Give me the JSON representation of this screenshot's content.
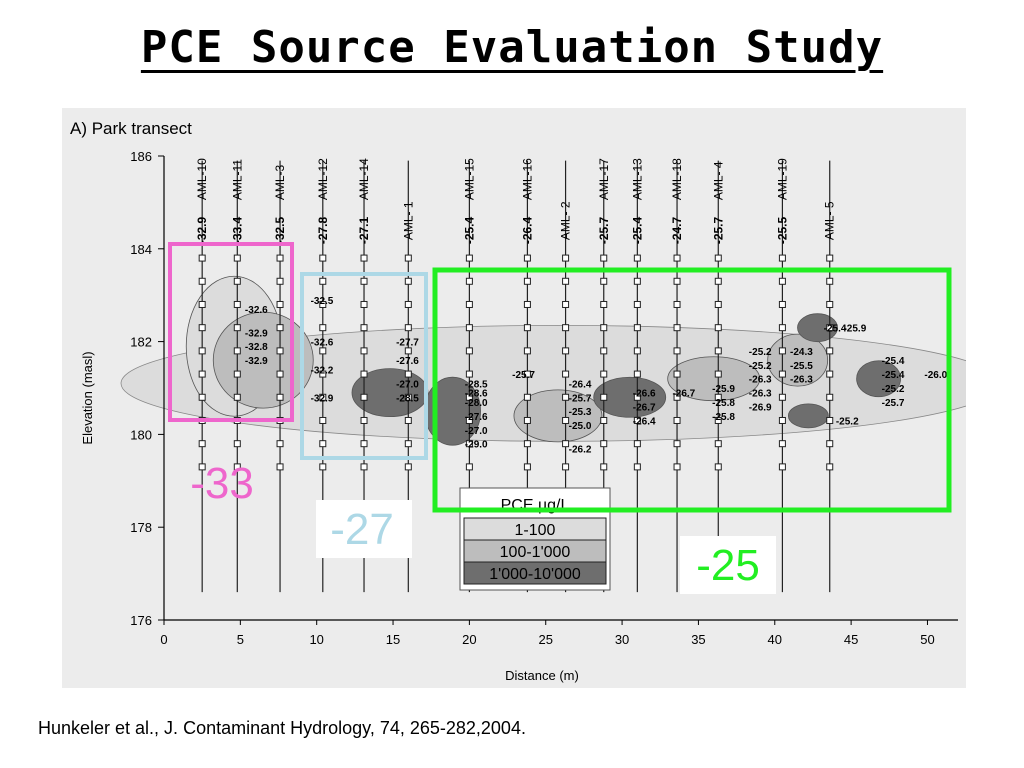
{
  "slide": {
    "title": "PCE Source Evaluation Study",
    "citation": "Hunkeler et al., J. Contaminant Hydrology, 74, 265-282,2004."
  },
  "colors": {
    "pink": "#ee66cc",
    "lightblue": "#add8e6",
    "green": "#22ee22",
    "shade_low": "#dcdcdc",
    "shade_mid": "#bdbdbd",
    "shade_high": "#6e6e6e"
  },
  "chart_data": {
    "type": "scatter",
    "title": "A) Park transect",
    "xlabel": "Distance (m)",
    "ylabel": "Elevation (masl)",
    "xlim": [
      0,
      52
    ],
    "ylim": [
      176,
      186
    ],
    "x_ticks": [
      "0",
      "5",
      "10",
      "15",
      "20",
      "25",
      "30",
      "35",
      "40",
      "45",
      "50"
    ],
    "y_ticks": [
      "176",
      "178",
      "180",
      "182",
      "184",
      "186"
    ],
    "wells": [
      {
        "name": "AML-10",
        "x": 2.5,
        "value": "-32.9"
      },
      {
        "name": "AML-11",
        "x": 4.8,
        "value": "-33.4"
      },
      {
        "name": "AML-3",
        "x": 7.6,
        "value": "-32.5"
      },
      {
        "name": "AML-12",
        "x": 10.4,
        "value": "-27.8"
      },
      {
        "name": "AML-14",
        "x": 13.1,
        "value": "-27.1"
      },
      {
        "name": "AML- 1",
        "x": 16.0,
        "value": ""
      },
      {
        "name": "AML-15",
        "x": 20.0,
        "value": "-25.4"
      },
      {
        "name": "AML-16",
        "x": 23.8,
        "value": "-26.4"
      },
      {
        "name": "AML- 2",
        "x": 26.3,
        "value": ""
      },
      {
        "name": "AML-17",
        "x": 28.8,
        "value": "-25.7"
      },
      {
        "name": "AML-13",
        "x": 31.0,
        "value": "-25.4"
      },
      {
        "name": "AML-18",
        "x": 33.6,
        "value": "-24.7"
      },
      {
        "name": "AML- 4",
        "x": 36.3,
        "value": "-25.7"
      },
      {
        "name": "AML-19",
        "x": 40.5,
        "value": "-25.5"
      },
      {
        "name": "AML- 5",
        "x": 43.6,
        "value": ""
      }
    ],
    "isotope_labels": [
      {
        "x": 5.3,
        "y": 182.7,
        "text": "-32.6"
      },
      {
        "x": 5.3,
        "y": 182.2,
        "text": "-32.9"
      },
      {
        "x": 5.3,
        "y": 181.9,
        "text": "-32.8"
      },
      {
        "x": 5.3,
        "y": 181.6,
        "text": "-32.9"
      },
      {
        "x": 9.6,
        "y": 182.9,
        "text": "-32.5"
      },
      {
        "x": 9.6,
        "y": 182.0,
        "text": "-32.6"
      },
      {
        "x": 9.6,
        "y": 181.4,
        "text": "-32.2"
      },
      {
        "x": 9.6,
        "y": 180.8,
        "text": "-32.9"
      },
      {
        "x": 15.2,
        "y": 182.0,
        "text": "-27.7"
      },
      {
        "x": 15.2,
        "y": 181.6,
        "text": "-27.6"
      },
      {
        "x": 15.2,
        "y": 181.1,
        "text": "-27.0"
      },
      {
        "x": 15.2,
        "y": 180.8,
        "text": "-28.5"
      },
      {
        "x": 19.7,
        "y": 181.1,
        "text": "-28.5"
      },
      {
        "x": 19.7,
        "y": 180.9,
        "text": "-28.6"
      },
      {
        "x": 19.7,
        "y": 180.7,
        "text": "-28.0"
      },
      {
        "x": 19.7,
        "y": 180.4,
        "text": "-27.6"
      },
      {
        "x": 19.7,
        "y": 180.1,
        "text": "-27.0"
      },
      {
        "x": 19.7,
        "y": 179.8,
        "text": "-29.0"
      },
      {
        "x": 22.8,
        "y": 181.3,
        "text": "-25.7"
      },
      {
        "x": 26.5,
        "y": 181.1,
        "text": "-26.4"
      },
      {
        "x": 26.5,
        "y": 180.8,
        "text": "-25.7"
      },
      {
        "x": 26.5,
        "y": 180.5,
        "text": "-25.3"
      },
      {
        "x": 26.5,
        "y": 180.2,
        "text": "-25.0"
      },
      {
        "x": 26.5,
        "y": 179.7,
        "text": "-26.2"
      },
      {
        "x": 30.7,
        "y": 180.9,
        "text": "-26.6"
      },
      {
        "x": 30.7,
        "y": 180.6,
        "text": "-26.7"
      },
      {
        "x": 30.7,
        "y": 180.3,
        "text": "-26.4"
      },
      {
        "x": 33.3,
        "y": 180.9,
        "text": "-26.7"
      },
      {
        "x": 35.9,
        "y": 181.0,
        "text": "-25.9"
      },
      {
        "x": 35.9,
        "y": 180.7,
        "text": "-25.8"
      },
      {
        "x": 35.9,
        "y": 180.4,
        "text": "-25.8"
      },
      {
        "x": 38.3,
        "y": 181.8,
        "text": "-25.2"
      },
      {
        "x": 38.3,
        "y": 181.5,
        "text": "-25.2"
      },
      {
        "x": 38.3,
        "y": 181.2,
        "text": "-26.3"
      },
      {
        "x": 38.3,
        "y": 180.9,
        "text": "-26.3"
      },
      {
        "x": 38.3,
        "y": 180.6,
        "text": "-26.9"
      },
      {
        "x": 41.0,
        "y": 181.8,
        "text": "-24.3"
      },
      {
        "x": 41.0,
        "y": 181.5,
        "text": "-25.5"
      },
      {
        "x": 41.0,
        "y": 181.2,
        "text": "-26.3"
      },
      {
        "x": 43.2,
        "y": 182.3,
        "text": "-25.4"
      },
      {
        "x": 44.5,
        "y": 182.3,
        "text": "-25.9"
      },
      {
        "x": 44.0,
        "y": 180.3,
        "text": "-25.2"
      },
      {
        "x": 47.0,
        "y": 181.6,
        "text": "-25.4"
      },
      {
        "x": 47.0,
        "y": 181.3,
        "text": "-25.4"
      },
      {
        "x": 47.0,
        "y": 181.0,
        "text": "-25.2"
      },
      {
        "x": 47.0,
        "y": 180.7,
        "text": "-25.7"
      },
      {
        "x": 49.8,
        "y": 181.3,
        "text": "-26.0"
      }
    ],
    "legend": {
      "title": "PCE µg/L",
      "entries": [
        "1-100",
        "100-1'000",
        "1'000-10'000"
      ]
    },
    "annotations": [
      {
        "text": "-33",
        "color": "#ee66cc"
      },
      {
        "text": "-27",
        "color": "#add8e6"
      },
      {
        "text": "-25",
        "color": "#22ee22"
      }
    ]
  }
}
